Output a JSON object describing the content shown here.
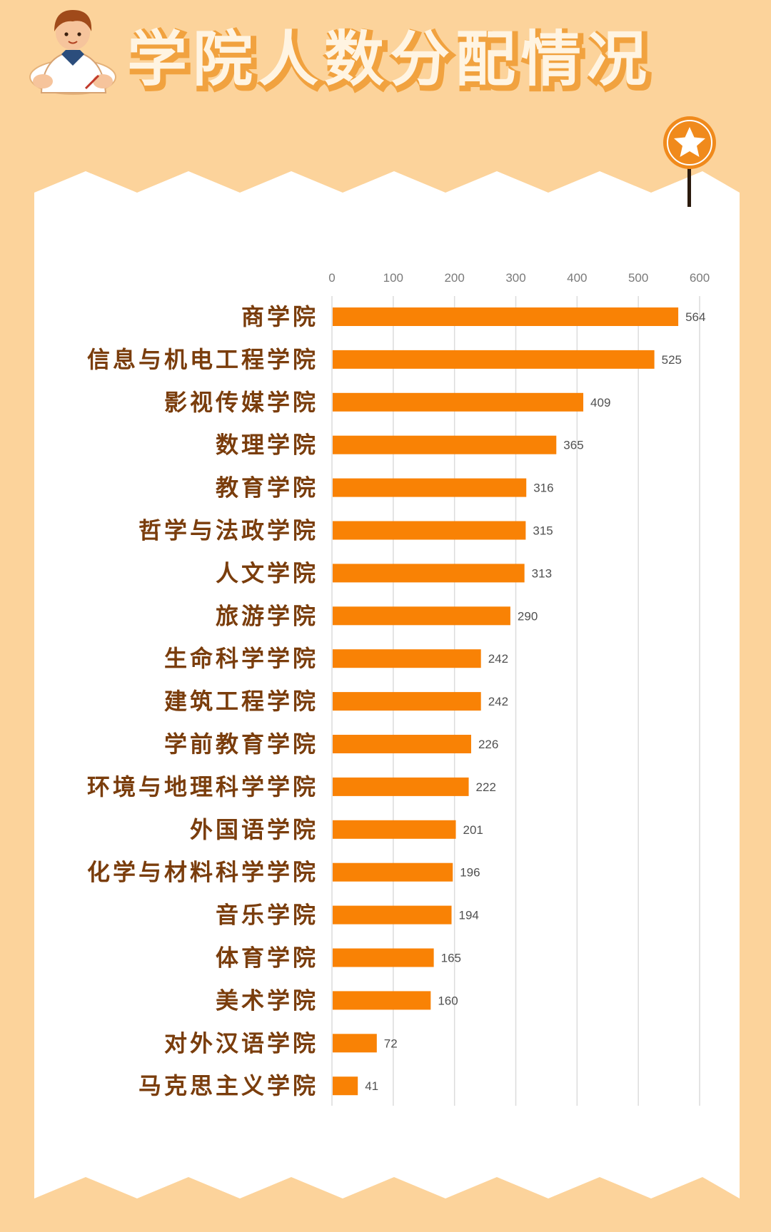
{
  "header": {
    "title": "学院人数分配情况",
    "avatar_icon": "student-writing-icon",
    "badge_icon": "star-icon"
  },
  "colors": {
    "background": "#fcd39b",
    "panel": "#ffffff",
    "bar": "#f98205",
    "label": "#7a3d0c",
    "badge": "#f08a1c",
    "pin": "#2b1a0d"
  },
  "chart_data": {
    "type": "bar",
    "orientation": "horizontal",
    "title": "",
    "xlabel": "",
    "ylabel": "",
    "xlim": [
      0,
      600
    ],
    "ticks": [
      "0",
      "100",
      "200",
      "300",
      "400",
      "500",
      "600"
    ],
    "grid": true,
    "data_labels": true,
    "categories": [
      "商学院",
      "信息与机电工程学院",
      "影视传媒学院",
      "数理学院",
      "教育学院",
      "哲学与法政学院",
      "人文学院",
      "旅游学院",
      "生命科学学院",
      "建筑工程学院",
      "学前教育学院",
      "环境与地理科学学院",
      "外国语学院",
      "化学与材料科学学院",
      "音乐学院",
      "体育学院",
      "美术学院",
      "对外汉语学院",
      "马克思主义学院"
    ],
    "values": [
      564,
      525,
      409,
      365,
      316,
      315,
      313,
      290,
      242,
      242,
      226,
      222,
      201,
      196,
      194,
      165,
      160,
      72,
      41
    ]
  }
}
